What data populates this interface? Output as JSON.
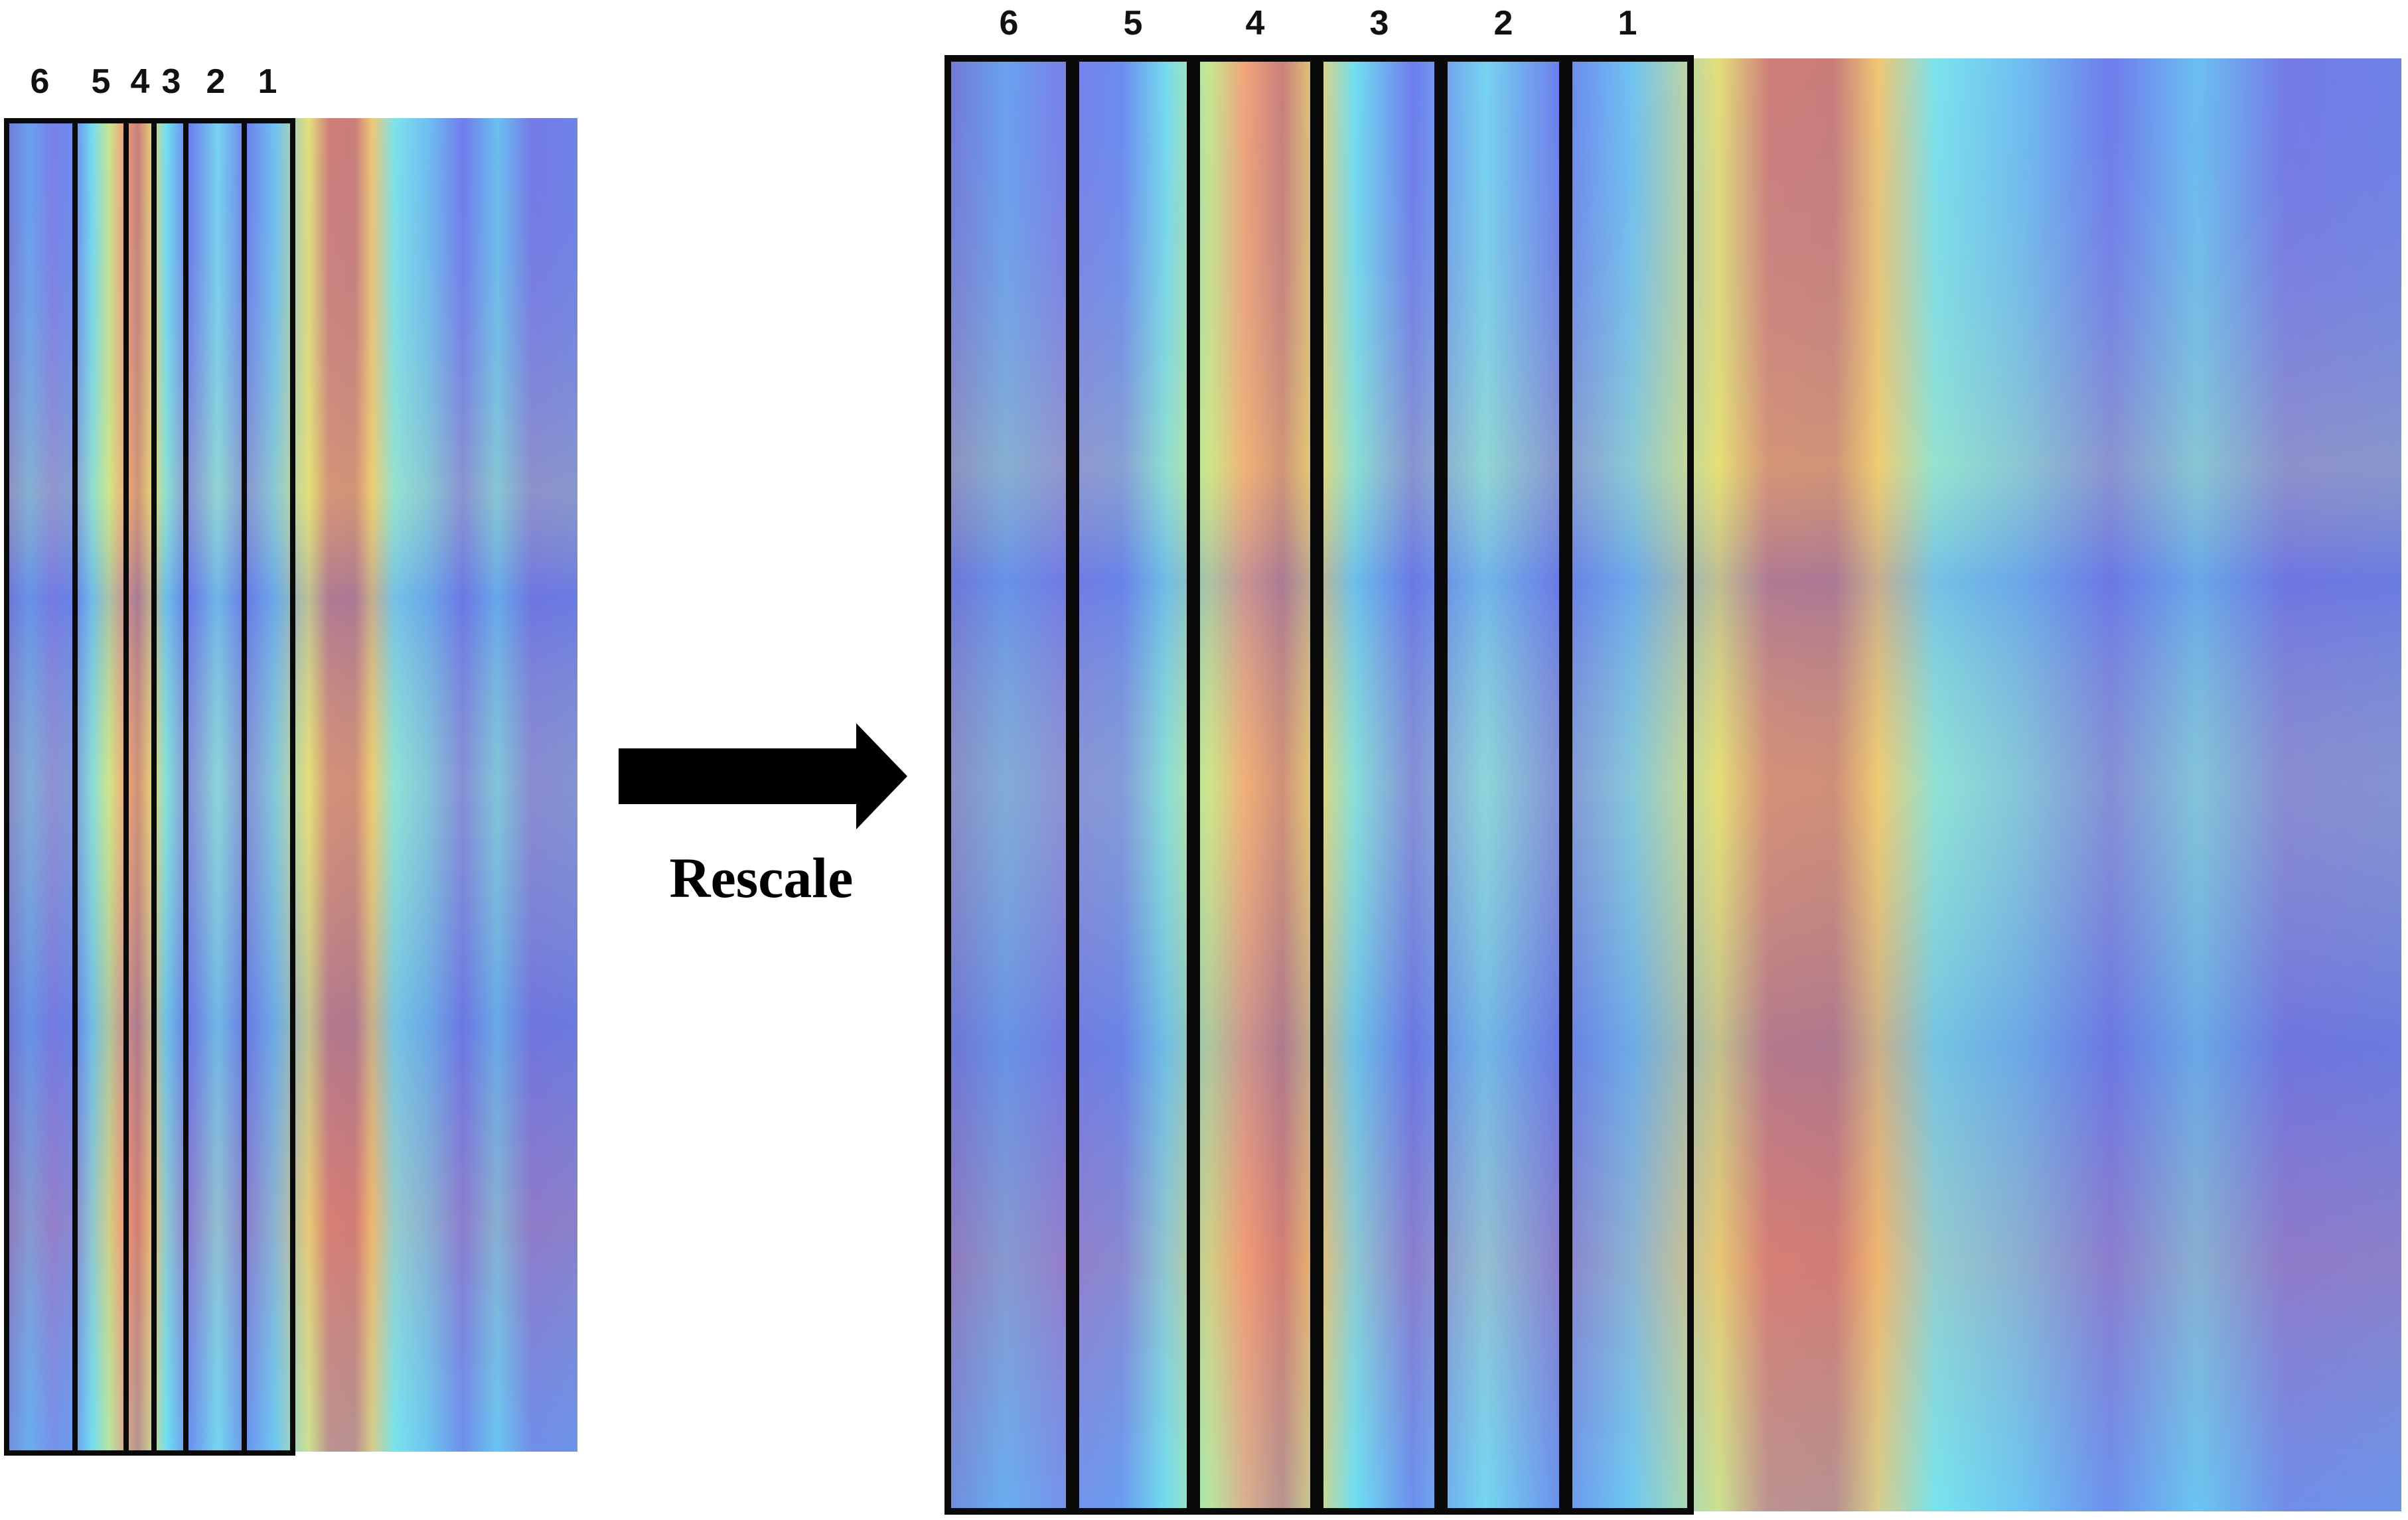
{
  "left_panel": {
    "labels": [
      "6",
      "5",
      "4",
      "3",
      "2",
      "1"
    ]
  },
  "right_panel": {
    "labels": [
      "6",
      "5",
      "4",
      "3",
      "2",
      "1"
    ]
  },
  "arrow": {
    "caption": "Rescale"
  },
  "colors": {
    "cold": "#6f78ee",
    "cyan": "#63e6f2",
    "warm": "#f3e36a",
    "hot": "#c97e78",
    "frame": "#0a0a0a"
  }
}
